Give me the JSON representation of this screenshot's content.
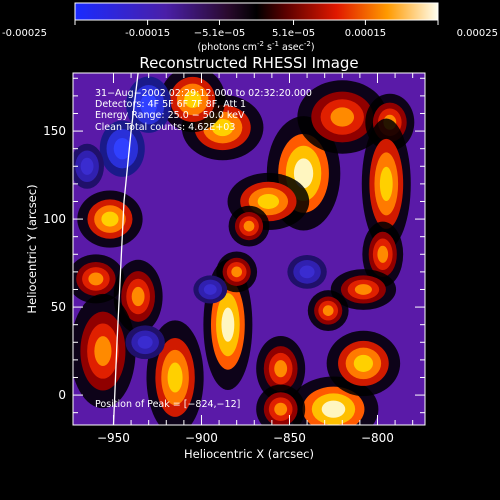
{
  "colorbar": {
    "min": -0.00025,
    "max": 0.00025,
    "ticks": [
      -0.00025,
      -0.00015,
      -5.1e-05,
      5.1e-05,
      0.00015,
      0.00025
    ],
    "tick_labels": [
      "-0.00025",
      "-0.00015",
      "−5.1e−05",
      "5.1e−05",
      "0.00015",
      "0.00025"
    ],
    "unit_parts": [
      "(photons cm",
      "-2",
      " s",
      "-1",
      " asec",
      "-2",
      ")"
    ]
  },
  "chart_data": {
    "type": "heatmap",
    "title": "Reconstructed RHESSI Image",
    "xlabel": "Heliocentric X (arcsec)",
    "ylabel": "Heliocentric Y (arcsec)",
    "xlim": [
      -973,
      -773
    ],
    "ylim": [
      -17,
      183
    ],
    "x_ticks": [
      -950,
      -900,
      -850,
      -800
    ],
    "y_ticks": [
      0,
      50,
      100,
      150
    ],
    "x_tick_labels": [
      "−950",
      "−900",
      "−850",
      "−800"
    ],
    "y_tick_labels": [
      "0",
      "50",
      "100",
      "150"
    ],
    "annotations": [
      "31−Aug−2002 02:29:12.000 to 02:32:20.000",
      "Detectors: 4F 5F 6F 7F 8F, Att 1",
      "Energy Range: 25.0 − 50.0 keV",
      "Clean    Total counts: 4.62E+03"
    ],
    "peak_label": "Position of Peak = [−824,−12]",
    "peak": [
      -824,
      -12
    ],
    "limb": [
      [
        -950,
        -17
      ],
      [
        -948,
        30
      ],
      [
        -946,
        70
      ],
      [
        -944,
        110
      ],
      [
        -940,
        150
      ],
      [
        -936,
        183
      ]
    ],
    "blobs": [
      {
        "x": -842,
        "y": 126,
        "sx": 9,
        "sy": 14,
        "a": 0.9
      },
      {
        "x": -862,
        "y": 110,
        "sx": 10,
        "sy": 7,
        "a": 0.8
      },
      {
        "x": -888,
        "y": 152,
        "sx": 10,
        "sy": 8,
        "a": 0.85
      },
      {
        "x": -905,
        "y": 168,
        "sx": 8,
        "sy": 8,
        "a": 0.7
      },
      {
        "x": -820,
        "y": 158,
        "sx": 11,
        "sy": 9,
        "a": 0.6
      },
      {
        "x": -793,
        "y": 155,
        "sx": 6,
        "sy": 7,
        "a": 0.55
      },
      {
        "x": -795,
        "y": 120,
        "sx": 6,
        "sy": 16,
        "a": 0.7
      },
      {
        "x": -797,
        "y": 80,
        "sx": 5,
        "sy": 8,
        "a": 0.5
      },
      {
        "x": -808,
        "y": 60,
        "sx": 8,
        "sy": 5,
        "a": 0.45
      },
      {
        "x": -952,
        "y": 100,
        "sx": 8,
        "sy": 7,
        "a": 0.85
      },
      {
        "x": -960,
        "y": 66,
        "sx": 7,
        "sy": 6,
        "a": 0.6
      },
      {
        "x": -936,
        "y": 56,
        "sx": 6,
        "sy": 9,
        "a": 0.6
      },
      {
        "x": -915,
        "y": 10,
        "sx": 7,
        "sy": 14,
        "a": 0.85
      },
      {
        "x": -956,
        "y": 25,
        "sx": 8,
        "sy": 14,
        "a": 0.6
      },
      {
        "x": -885,
        "y": 40,
        "sx": 6,
        "sy": 16,
        "a": 0.9
      },
      {
        "x": -855,
        "y": 15,
        "sx": 6,
        "sy": 8,
        "a": 0.6
      },
      {
        "x": -873,
        "y": 96,
        "sx": 5,
        "sy": 5,
        "a": 0.5
      },
      {
        "x": -880,
        "y": 70,
        "sx": 5,
        "sy": 5,
        "a": 0.45
      },
      {
        "x": -828,
        "y": 48,
        "sx": 5,
        "sy": 5,
        "a": 0.5
      },
      {
        "x": -825,
        "y": -8,
        "sx": 11,
        "sy": 8,
        "a": 1.0
      },
      {
        "x": -808,
        "y": 18,
        "sx": 9,
        "sy": 8,
        "a": 0.75
      },
      {
        "x": -855,
        "y": -8,
        "sx": 6,
        "sy": 6,
        "a": 0.5
      },
      {
        "x": -930,
        "y": 165,
        "sx": 8,
        "sy": 10,
        "a": -0.8
      },
      {
        "x": -945,
        "y": 140,
        "sx": 8,
        "sy": 10,
        "a": -0.7
      },
      {
        "x": -895,
        "y": 60,
        "sx": 6,
        "sy": 5,
        "a": -0.5
      },
      {
        "x": -932,
        "y": 30,
        "sx": 7,
        "sy": 6,
        "a": -0.5
      },
      {
        "x": -965,
        "y": 130,
        "sx": 6,
        "sy": 8,
        "a": -0.4
      },
      {
        "x": -840,
        "y": 70,
        "sx": 7,
        "sy": 6,
        "a": -0.35
      }
    ]
  }
}
